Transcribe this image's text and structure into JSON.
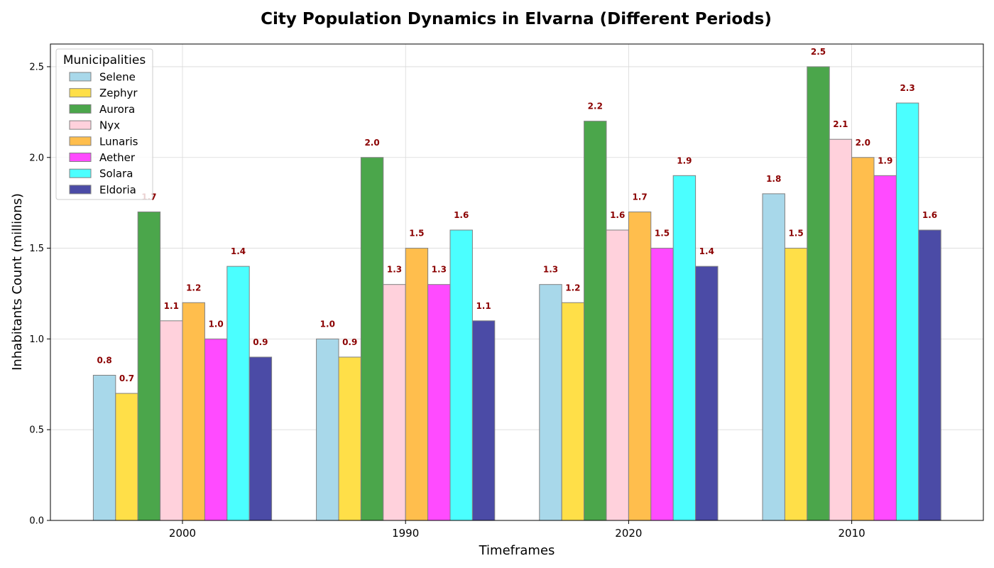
{
  "chart_data": {
    "type": "bar",
    "title": "City Population Dynamics in Elvarna (Different Periods)",
    "xlabel": "Timeframes",
    "ylabel": "Inhabitants Count (millions)",
    "categories": [
      "2000",
      "1990",
      "2020",
      "2010"
    ],
    "ylim": [
      0,
      2.625
    ],
    "yticks": [
      0.0,
      0.5,
      1.0,
      1.5,
      2.0,
      2.5
    ],
    "ytick_labels": [
      "0.0",
      "0.5",
      "1.0",
      "1.5",
      "2.0",
      "2.5"
    ],
    "grid": true,
    "legend": {
      "title": "Municipalities",
      "position": "top-left"
    },
    "data_label_color": "#8b0000",
    "series": [
      {
        "name": "Selene",
        "color": "#a8d8ea",
        "values": [
          0.8,
          1.0,
          1.3,
          1.8
        ],
        "labels": [
          "0.8",
          "1.0",
          "1.3",
          "1.8"
        ]
      },
      {
        "name": "Zephyr",
        "color": "#ffdf48",
        "values": [
          0.7,
          0.9,
          1.2,
          1.5
        ],
        "labels": [
          "0.7",
          "0.9",
          "1.2",
          "1.5"
        ]
      },
      {
        "name": "Aurora",
        "color": "#4ba64b",
        "values": [
          1.7,
          2.0,
          2.2,
          2.5
        ],
        "labels": [
          "1.7",
          "2.0",
          "2.2",
          "2.5"
        ]
      },
      {
        "name": "Nyx",
        "color": "#ffd1dc",
        "values": [
          1.1,
          1.3,
          1.6,
          2.1
        ],
        "labels": [
          "1.1",
          "1.3",
          "1.6",
          "2.1"
        ]
      },
      {
        "name": "Lunaris",
        "color": "#ffbe4d",
        "values": [
          1.2,
          1.5,
          1.7,
          2.0
        ],
        "labels": [
          "1.2",
          "1.5",
          "1.7",
          "2.0"
        ]
      },
      {
        "name": "Aether",
        "color": "#ff4bff",
        "values": [
          1.0,
          1.3,
          1.5,
          1.9
        ],
        "labels": [
          "1.0",
          "1.3",
          "1.5",
          "1.9"
        ]
      },
      {
        "name": "Solara",
        "color": "#4bffff",
        "values": [
          1.4,
          1.6,
          1.9,
          2.3
        ],
        "labels": [
          "1.4",
          "1.6",
          "1.9",
          "2.3"
        ]
      },
      {
        "name": "Eldoria",
        "color": "#4b4ba6",
        "values": [
          0.9,
          1.1,
          1.4,
          1.6
        ],
        "labels": [
          "0.9",
          "1.1",
          "1.4",
          "1.6"
        ]
      }
    ]
  }
}
